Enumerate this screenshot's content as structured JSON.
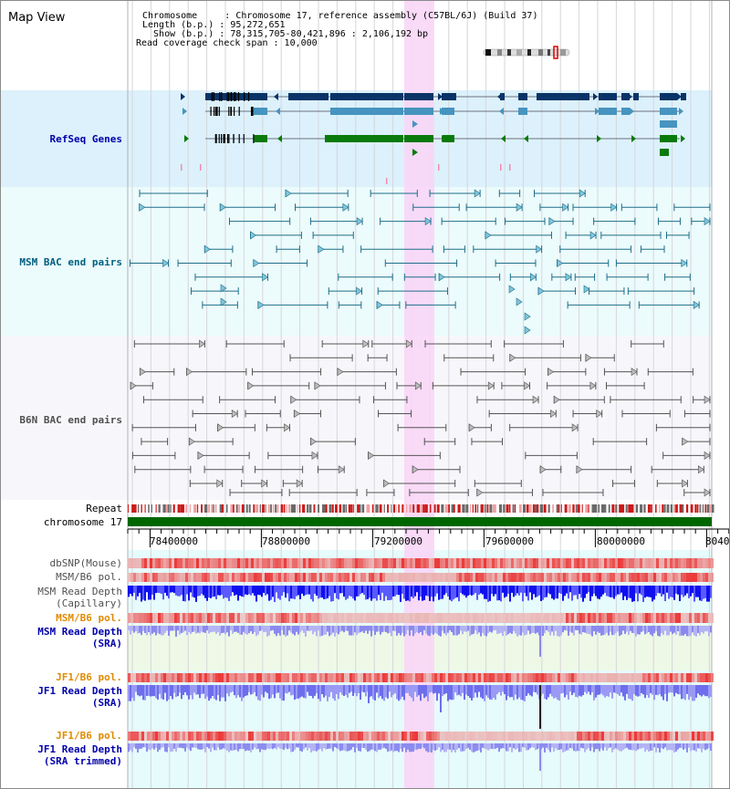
{
  "header": {
    "map_view_label": "Map View",
    "info": [
      "Chromosome     : Chromosome 17, reference assembly (C57BL/6J) (Build 37)",
      "Length (b.p.) : 95,272,651",
      "  Show (b.p.) : 78,315,705-80,421,896 : 2,106,192 bp",
      "Read coverage check span : 10,000"
    ]
  },
  "tracks": {
    "refseq": "RefSeq Genes",
    "msm_bac": "MSM BAC end pairs",
    "b6n_bac": "B6N BAC end pairs",
    "repeat": "Repeat",
    "chromosome": "chromosome 17",
    "dbsnp": "dbSNP(Mouse)",
    "msm_b6_pol": "MSM/B6 pol.",
    "msm_depth_cap_1": "MSM Read Depth",
    "msm_depth_cap_2": "(Capillary)",
    "msm_b6_pol_sra": "MSM/B6 pol.",
    "msm_depth_sra_1": "MSM Read Depth",
    "msm_depth_sra_2": "(SRA)",
    "jf1_b6_pol": "JF1/B6 pol.",
    "jf1_depth_sra_1": "JF1 Read Depth",
    "jf1_depth_sra_2": "(SRA)",
    "jf1_b6_pol_trim": "JF1/B6 pol.",
    "jf1_depth_trim_1": "JF1 Read Depth",
    "jf1_depth_trim_2": "(SRA trimmed)"
  },
  "axis": {
    "ticks": [
      "78400000",
      "78800000",
      "79200000",
      "79600000",
      "80000000",
      "8040"
    ]
  },
  "colors": {
    "refseq_label": "#0000aa",
    "msm_label": "#006080",
    "b6n_label": "#505050",
    "orange_label": "#e08a00",
    "highlight": "#f8d6f6",
    "chromosome_bar": "#006600",
    "gene_blue": "#0a3468",
    "gene_mid": "#4694bf",
    "gene_green": "#0a7a0a"
  }
}
